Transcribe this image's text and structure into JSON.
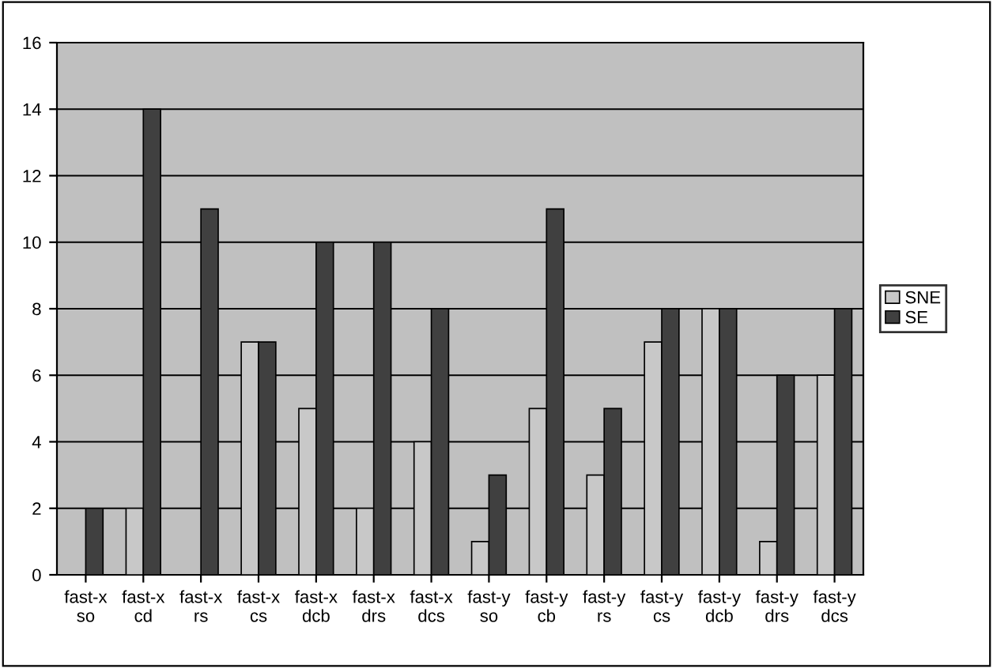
{
  "chart_data": {
    "type": "bar",
    "categories": [
      "fast-x\nso",
      "fast-x\ncd",
      "fast-x\nrs",
      "fast-x\ncs",
      "fast-x\ndcb",
      "fast-x\ndrs",
      "fast-x\ndcs",
      "fast-y\nso",
      "fast-y\ncb",
      "fast-y\nrs",
      "fast-y\ncs",
      "fast-y\ndcb",
      "fast-y\ndrs",
      "fast-y\ndcs"
    ],
    "series": [
      {
        "name": "SNE",
        "color": "#c8c8c8",
        "values": [
          0,
          2,
          0,
          7,
          5,
          2,
          4,
          1,
          5,
          3,
          7,
          8,
          1,
          6
        ]
      },
      {
        "name": "SE",
        "color": "#404040",
        "values": [
          2,
          14,
          11,
          7,
          10,
          10,
          8,
          3,
          11,
          5,
          8,
          8,
          6,
          8
        ]
      }
    ],
    "ylim": [
      0,
      16
    ],
    "yticks": [
      0,
      2,
      4,
      6,
      8,
      10,
      12,
      14,
      16
    ],
    "grid": "y",
    "legend": "right"
  }
}
